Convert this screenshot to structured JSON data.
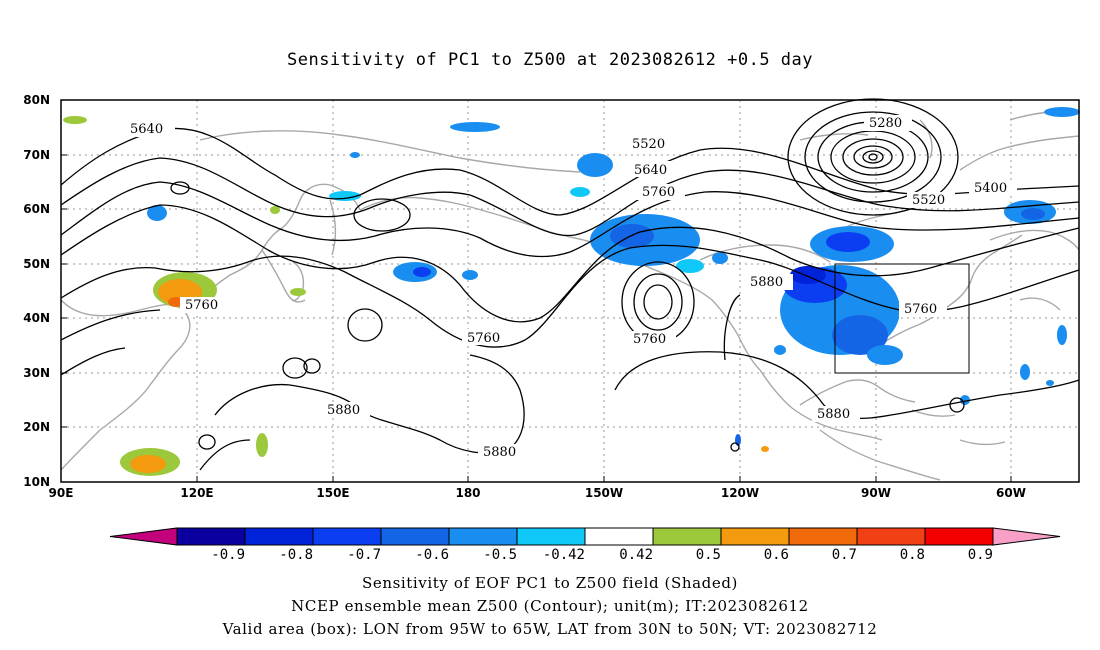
{
  "title": "Sensitivity of PC1 to Z500 at 2023082612 +0.5 day",
  "lat_labels": [
    "80N",
    "70N",
    "60N",
    "50N",
    "40N",
    "30N",
    "20N",
    "10N"
  ],
  "lon_labels": [
    "90E",
    "120E",
    "150E",
    "180",
    "150W",
    "120W",
    "90W",
    "60W"
  ],
  "contour_labels": [
    "5640",
    "5520",
    "5640",
    "5760",
    "5280",
    "5400",
    "5520",
    "5760",
    "5760",
    "5880",
    "5760",
    "5760",
    "5880",
    "5880",
    "5880"
  ],
  "colorbar": {
    "labels": [
      "-0.9",
      "-0.8",
      "-0.7",
      "-0.6",
      "-0.5",
      "-0.42",
      "0.42",
      "0.5",
      "0.6",
      "0.7",
      "0.8",
      "0.9"
    ],
    "colors": [
      "#c4007c",
      "#0a00a0",
      "#0022d8",
      "#0a3ef0",
      "#1464e6",
      "#1a8ef0",
      "#10c8f8",
      "#ffffff",
      "#9cc83c",
      "#f49a0e",
      "#f06a0a",
      "#f04014",
      "#f40000",
      "#f8a0c8"
    ]
  },
  "valid_box": {
    "lon_range": [
      "95W",
      "65W"
    ],
    "lat_range": [
      "30N",
      "50N"
    ]
  },
  "captions": {
    "line1": "Sensitivity of EOF PC1 to Z500 field (Shaded)",
    "line2": "NCEP ensemble mean Z500 (Contour); unit(m); IT:2023082612",
    "line3": "Valid area (box): LON from 95W to 65W, LAT from 30N to 50N; VT: 2023082712"
  }
}
